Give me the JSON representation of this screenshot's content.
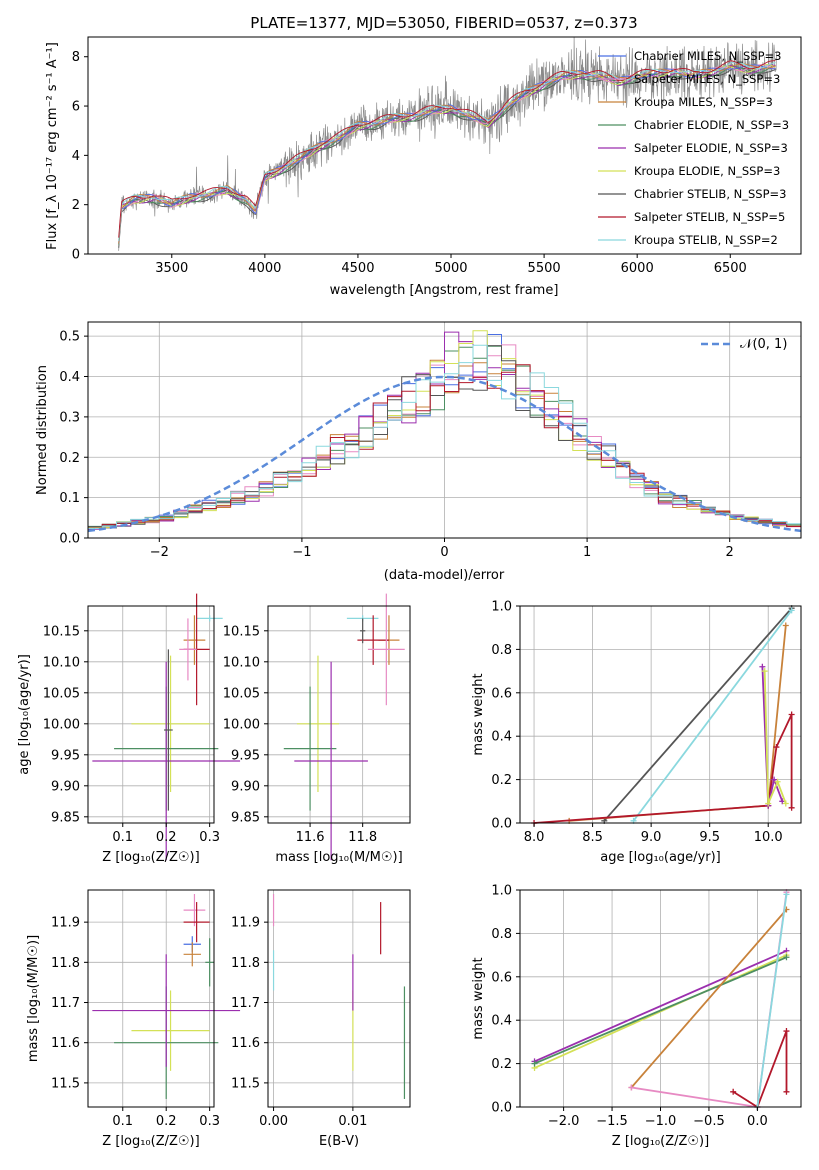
{
  "chart_data": [
    {
      "id": "spectrum",
      "type": "line",
      "title": "PLATE=1377, MJD=53050, FIBERID=0537, z=0.373",
      "xlabel": "wavelength [Angstrom, rest frame]",
      "ylabel": "Flux [f_λ 10⁻¹⁷ erg cm⁻² s⁻¹ A⁻¹]",
      "xlim": [
        3050,
        6880
      ],
      "ylim": [
        0,
        8.8
      ],
      "xticks": [
        3500,
        4000,
        4500,
        5000,
        5500,
        6000,
        6500
      ],
      "yticks": [
        0,
        2,
        4,
        6,
        8
      ],
      "continuum_x": [
        3210,
        3230,
        3300,
        3400,
        3500,
        3600,
        3700,
        3800,
        3900,
        3950,
        4000,
        4100,
        4200,
        4300,
        4400,
        4500,
        4600,
        4700,
        4800,
        4900,
        5000,
        5100,
        5200,
        5300,
        5400,
        5500,
        5600,
        5700,
        5800,
        5900,
        6000,
        6100,
        6200,
        6300,
        6400,
        6500,
        6600,
        6700,
        6750
      ],
      "continuum_y": [
        0,
        1.9,
        2.2,
        2.3,
        2.0,
        2.3,
        2.4,
        2.6,
        2.2,
        1.7,
        3.1,
        3.5,
        3.9,
        4.4,
        4.7,
        5.2,
        5.3,
        5.5,
        5.6,
        5.8,
        5.9,
        5.6,
        5.3,
        6.0,
        6.5,
        6.9,
        7.2,
        7.3,
        7.2,
        7.0,
        7.2,
        7.3,
        7.4,
        7.2,
        7.4,
        7.6,
        7.5,
        7.6,
        7.6
      ],
      "legend_position": "right",
      "legend": [
        "Chabrier MILES, N_SSP=3",
        "Salpeter MILES, N_SSP=3",
        "Kroupa MILES, N_SSP=3",
        "Chabrier ELODIE, N_SSP=3",
        "Salpeter ELODIE, N_SSP=3",
        "Kroupa ELODIE, N_SSP=3",
        "Chabrier STELIB, N_SSP=3",
        "Salpeter STELIB, N_SSP=5",
        "Kroupa STELIB, N_SSP=2"
      ],
      "series_colors": [
        "#4a6fe3",
        "#e78ac3",
        "#c8823a",
        "#4d8f62",
        "#9b2fae",
        "#d4e157",
        "#555555",
        "#b2182b",
        "#8ad8de"
      ]
    },
    {
      "id": "residuals",
      "type": "histogram",
      "xlabel": "(data-model)/error",
      "ylabel": "Normed distribution",
      "xlim": [
        -2.5,
        2.5
      ],
      "ylim": [
        0,
        0.535
      ],
      "xticks": [
        -2,
        -1,
        0,
        1,
        2
      ],
      "yticks": [
        0,
        0.1,
        0.2,
        0.3,
        0.4,
        0.5
      ],
      "bin_width": 0.1,
      "bin_start": -2.5,
      "base_values": [
        0.025,
        0.03,
        0.035,
        0.04,
        0.045,
        0.05,
        0.06,
        0.07,
        0.08,
        0.09,
        0.1,
        0.11,
        0.12,
        0.14,
        0.16,
        0.18,
        0.2,
        0.22,
        0.24,
        0.26,
        0.29,
        0.31,
        0.34,
        0.36,
        0.38,
        0.4,
        0.42,
        0.44,
        0.43,
        0.41,
        0.38,
        0.35,
        0.32,
        0.29,
        0.26,
        0.23,
        0.2,
        0.17,
        0.15,
        0.12,
        0.1,
        0.09,
        0.08,
        0.07,
        0.06,
        0.05,
        0.045,
        0.04,
        0.035,
        0.03
      ],
      "reference_label": "𝒩(0, 1)",
      "reference_color": "#5b8bd9",
      "legend_position": "upper right"
    },
    {
      "id": "age-vs-Z",
      "type": "errorbar",
      "xlabel": "Z [log₁₀(Z/Z☉)]",
      "ylabel": "age  [log₁₀(age/yr)]",
      "xlim": [
        0.02,
        0.31
      ],
      "ylim": [
        9.84,
        10.19
      ],
      "xticks": [
        0.1,
        0.2,
        0.3
      ],
      "yticks": [
        9.85,
        9.9,
        9.95,
        10.0,
        10.05,
        10.1,
        10.15
      ],
      "points": [
        {
          "x": 0.3,
          "y": 10.17,
          "xerr": 0.03,
          "yerr": 0.005
        },
        {
          "x": 0.265,
          "y": 10.135,
          "xerr": 0.025,
          "yerr": 0.04
        },
        {
          "x": 0.27,
          "y": 10.12,
          "xerr": 0.03,
          "yerr": 0.09
        },
        {
          "x": 0.25,
          "y": 10.12,
          "xerr": 0.02,
          "yerr": 0.05
        },
        {
          "x": 0.21,
          "y": 10.0,
          "xerr": 0.09,
          "yerr": 0.11
        },
        {
          "x": 0.2,
          "y": 9.96,
          "xerr": 0.12,
          "yerr": 0.1
        },
        {
          "x": 0.2,
          "y": 9.94,
          "xerr": 0.17,
          "yerr": 0.16
        },
        {
          "x": 0.205,
          "y": 9.99,
          "xerr": 0.01,
          "yerr": 0.13
        }
      ]
    },
    {
      "id": "age-vs-mass",
      "type": "errorbar",
      "xlabel": "mass [log₁₀(M/M☉)]",
      "ylabel": "",
      "xlim": [
        11.44,
        11.98
      ],
      "ylim": [
        9.84,
        10.19
      ],
      "xticks": [
        11.6,
        11.8
      ],
      "yticks": [
        9.85,
        9.9,
        9.95,
        10.0,
        10.05,
        10.1,
        10.15
      ],
      "points": [
        {
          "x": 11.8,
          "y": 10.17,
          "xerr": 0.06,
          "yerr": 0.005
        },
        {
          "x": 11.9,
          "y": 10.135,
          "xerr": 0.04,
          "yerr": 0.04
        },
        {
          "x": 11.84,
          "y": 10.135,
          "xerr": 0.06,
          "yerr": 0.04
        },
        {
          "x": 11.89,
          "y": 10.12,
          "xerr": 0.07,
          "yerr": 0.09
        },
        {
          "x": 11.63,
          "y": 10.0,
          "xerr": 0.08,
          "yerr": 0.11
        },
        {
          "x": 11.6,
          "y": 9.96,
          "xerr": 0.1,
          "yerr": 0.1
        },
        {
          "x": 11.68,
          "y": 9.94,
          "xerr": 0.14,
          "yerr": 0.16
        },
        {
          "x": 11.8,
          "y": 10.15,
          "xerr": 0.01,
          "yerr": 0.02
        }
      ]
    },
    {
      "id": "massweight-vs-age",
      "type": "line",
      "xlabel": "age  [log₁₀(age/yr)]",
      "ylabel": "mass weight",
      "xlim": [
        7.88,
        10.28
      ],
      "ylim": [
        0,
        1
      ],
      "xticks": [
        8.0,
        8.5,
        9.0,
        9.5,
        10.0
      ],
      "yticks": [
        0,
        0.2,
        0.4,
        0.6,
        0.8,
        1.0
      ],
      "series": [
        {
          "x": [
            8.6,
            10.2
          ],
          "y": [
            0.01,
            0.99
          ]
        },
        {
          "x": [
            8.85,
            10.2
          ],
          "y": [
            0.01,
            0.98
          ]
        },
        {
          "x": [
            8.3,
            10.0,
            10.15
          ],
          "y": [
            0.01,
            0.08,
            0.91
          ]
        },
        {
          "x": [
            8.0,
            10.0,
            10.07,
            10.2,
            10.2
          ],
          "y": [
            0.0,
            0.08,
            0.35,
            0.5,
            0.07
          ]
        },
        {
          "x": [
            9.95,
            10.0,
            10.05,
            10.12
          ],
          "y": [
            0.72,
            0.08,
            0.2,
            0.1
          ]
        },
        {
          "x": [
            9.97,
            10.0,
            10.08,
            10.15
          ],
          "y": [
            0.7,
            0.09,
            0.19,
            0.09
          ]
        }
      ]
    },
    {
      "id": "mass-vs-Z",
      "type": "errorbar",
      "xlabel": "Z [log₁₀(Z/Z☉)]",
      "ylabel": "mass [log₁₀(M/M☉)]",
      "xlim": [
        0.02,
        0.31
      ],
      "ylim": [
        11.44,
        11.98
      ],
      "xticks": [
        0.1,
        0.2,
        0.3
      ],
      "yticks": [
        11.5,
        11.6,
        11.7,
        11.8,
        11.9
      ],
      "points": [
        {
          "x": 0.265,
          "y": 11.93,
          "xerr": 0.025,
          "yerr": 0.04
        },
        {
          "x": 0.27,
          "y": 11.9,
          "xerr": 0.03,
          "yerr": 0.05
        },
        {
          "x": 0.26,
          "y": 11.845,
          "xerr": 0.02,
          "yerr": 0.02
        },
        {
          "x": 0.26,
          "y": 11.82,
          "xerr": 0.02,
          "yerr": 0.03
        },
        {
          "x": 0.3,
          "y": 11.8,
          "xerr": 0.01,
          "yerr": 0.06
        },
        {
          "x": 0.21,
          "y": 11.63,
          "xerr": 0.09,
          "yerr": 0.1
        },
        {
          "x": 0.2,
          "y": 11.6,
          "xerr": 0.12,
          "yerr": 0.14
        },
        {
          "x": 0.2,
          "y": 11.68,
          "xerr": 0.17,
          "yerr": 0.14
        }
      ]
    },
    {
      "id": "mass-vs-EBV",
      "type": "errorbar",
      "xlabel": "E(B-V)",
      "ylabel": "",
      "xlim": [
        -0.0007,
        0.0172
      ],
      "ylim": [
        11.44,
        11.98
      ],
      "xticks": [
        0.0,
        0.01
      ],
      "yticks": [
        11.5,
        11.6,
        11.7,
        11.8,
        11.9
      ],
      "points": [
        {
          "x": 0.0,
          "y": 11.93,
          "yerr": 0.04
        },
        {
          "x": 0.0,
          "y": 11.78,
          "yerr": 0.05
        },
        {
          "x": 0.0135,
          "y": 11.885,
          "yerr": 0.065
        },
        {
          "x": 0.01,
          "y": 11.63,
          "yerr": 0.1
        },
        {
          "x": 0.01,
          "y": 11.75,
          "yerr": 0.07
        },
        {
          "x": 0.0165,
          "y": 11.6,
          "yerr": 0.14
        }
      ]
    },
    {
      "id": "massweight-vs-Z",
      "type": "line",
      "xlabel": "Z [log₁₀(Z/Z☉)]",
      "ylabel": "mass weight",
      "xlim": [
        -2.45,
        0.45
      ],
      "ylim": [
        0,
        1
      ],
      "xticks": [
        -2.0,
        -1.5,
        -1.0,
        -0.5,
        0.0
      ],
      "yticks": [
        0,
        0.2,
        0.4,
        0.6,
        0.8,
        1.0
      ],
      "series": [
        {
          "x": [
            -2.3,
            0.3
          ],
          "y": [
            0.21,
            0.72
          ]
        },
        {
          "x": [
            -2.3,
            0.3
          ],
          "y": [
            0.18,
            0.7
          ]
        },
        {
          "x": [
            -2.3,
            0.3
          ],
          "y": [
            0.2,
            0.69
          ]
        },
        {
          "x": [
            -1.3,
            0.3
          ],
          "y": [
            0.09,
            0.91
          ]
        },
        {
          "x": [
            -1.3,
            0.0,
            0.3
          ],
          "y": [
            0.09,
            0.0,
            0.99
          ]
        },
        {
          "x": [
            -0.25,
            0.0,
            0.3,
            0.3
          ],
          "y": [
            0.07,
            0.0,
            0.35,
            0.07
          ]
        },
        {
          "x": [
            0.0,
            0.3
          ],
          "y": [
            0.0,
            0.98
          ]
        }
      ]
    }
  ]
}
